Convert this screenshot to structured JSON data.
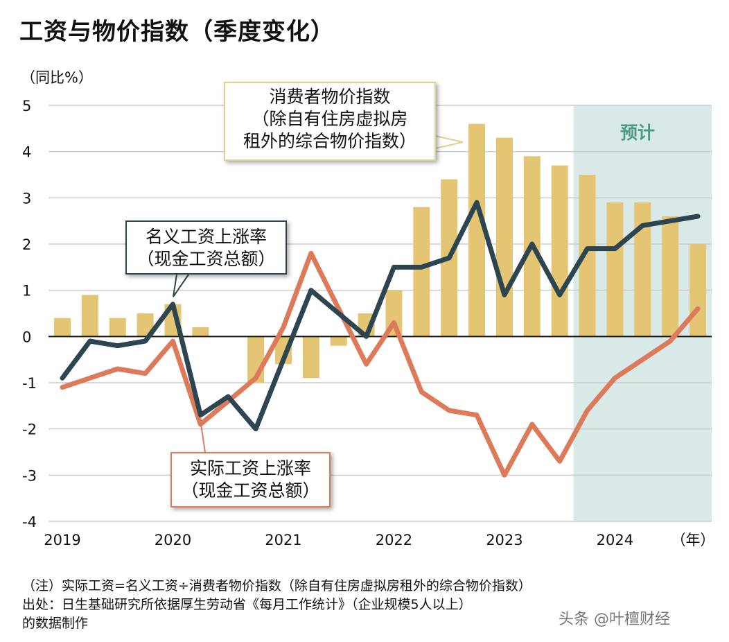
{
  "title": "工资与物价指数（季度变化）",
  "unit": "（同比%）",
  "forecast_label": "预计",
  "notes": [
    "（注）实际工资=名义工资÷消费者物价指数（除自有住房虚拟房租外的综合物价指数）",
    "出处：日生基础研究所依据厚生劳动省《每月工作统计》（企业规模5人以上）",
    "的数据制作"
  ],
  "watermark": "头条 @叶檀财经",
  "colors": {
    "cpi": "#e3c574",
    "nominal": "#2d4550",
    "real": "#dc7a5a",
    "forecast_bg": "#d9e9e7",
    "grid": "#cccccc"
  },
  "chart_data": {
    "type": "bar+line",
    "title": "工资与物价指数（季度变化）",
    "ylabel": "（同比%）",
    "xlabel": "（年）",
    "ylim": [
      -4,
      5
    ],
    "yticks": [
      5,
      4,
      3,
      2,
      1,
      0,
      -1,
      -2,
      -3,
      -4
    ],
    "x_tick_labels": [
      "2019",
      "2020",
      "2021",
      "2022",
      "2023",
      "2024"
    ],
    "x_unit_label": "（年）",
    "categories": [
      "2019Q1",
      "2019Q2",
      "2019Q3",
      "2019Q4",
      "2020Q1",
      "2020Q2",
      "2020Q3",
      "2020Q4",
      "2021Q1",
      "2021Q2",
      "2021Q3",
      "2021Q4",
      "2022Q1",
      "2022Q2",
      "2022Q3",
      "2022Q4",
      "2023Q1",
      "2023Q2",
      "2023Q3",
      "2023Q4",
      "2024Q1",
      "2024Q2",
      "2024Q3",
      "2024Q4"
    ],
    "forecast_from": "2023Q4",
    "grid": true,
    "series": [
      {
        "name": "消费者物价指数（除自有住房虚拟房租外的综合物价指数）",
        "label_lines": [
          "消费者物价指数",
          "（除自有住房虚拟房",
          "租外的综合物价指数）"
        ],
        "kind": "bar",
        "values": [
          0.4,
          0.9,
          0.4,
          0.5,
          0.7,
          0.2,
          0.0,
          -1.0,
          -0.6,
          -0.9,
          -0.2,
          0.5,
          1.0,
          2.8,
          3.4,
          4.6,
          4.3,
          3.9,
          3.7,
          3.5,
          2.9,
          2.9,
          2.6,
          2.0
        ]
      },
      {
        "name": "名义工资上涨率（现金工资总额）",
        "label_lines": [
          "名义工资上涨率",
          "（现金工资总额）"
        ],
        "kind": "line",
        "values": [
          -0.9,
          -0.1,
          -0.2,
          -0.1,
          0.7,
          -1.7,
          -1.3,
          -2.0,
          -0.5,
          1.0,
          0.5,
          0.0,
          1.5,
          1.5,
          1.7,
          2.9,
          0.9,
          2.0,
          0.9,
          1.9,
          1.9,
          2.4,
          2.5,
          2.6
        ]
      },
      {
        "name": "实际工资上涨率（现金工资总额）",
        "label_lines": [
          "实际工资上涨率",
          "（现金工资总额）"
        ],
        "kind": "line",
        "values": [
          -1.1,
          -0.9,
          -0.7,
          -0.8,
          -0.1,
          -1.9,
          -1.4,
          -0.9,
          0.2,
          1.8,
          0.6,
          -0.6,
          0.3,
          -1.2,
          -1.6,
          -1.7,
          -3.0,
          -1.9,
          -2.7,
          -1.6,
          -0.9,
          -0.5,
          -0.1,
          0.6
        ]
      }
    ]
  }
}
